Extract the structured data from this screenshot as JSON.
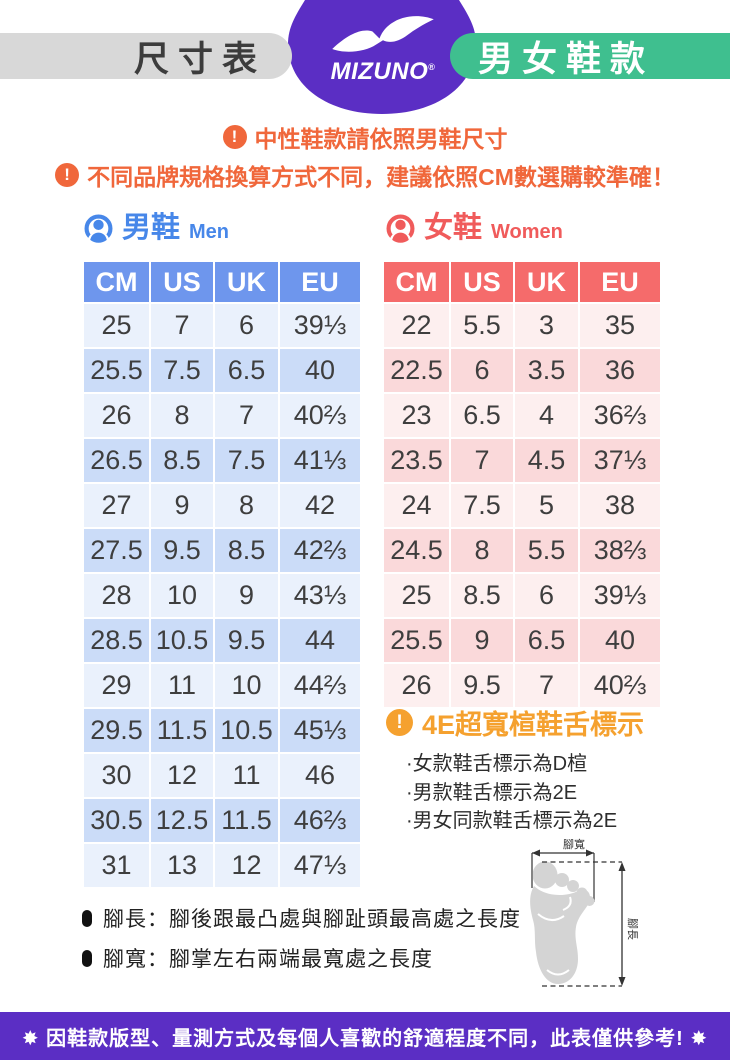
{
  "header": {
    "left_pill": "尺寸表",
    "right_pill": "男女鞋款",
    "brand_wordmark": "MIZUNO",
    "brand_reg_mark": "®"
  },
  "notices": {
    "line1": "中性鞋款請依照男鞋尺寸",
    "line2": "不同品牌規格換算方式不同，建議依照CM數選購較準確！",
    "alert_glyph": "!"
  },
  "men_section": {
    "title_zh": "男鞋",
    "title_en": "Men",
    "columns": [
      "CM",
      "US",
      "UK",
      "EU"
    ],
    "rows": [
      [
        "25",
        "7",
        "6",
        "39⅓"
      ],
      [
        "25.5",
        "7.5",
        "6.5",
        "40"
      ],
      [
        "26",
        "8",
        "7",
        "40⅔"
      ],
      [
        "26.5",
        "8.5",
        "7.5",
        "41⅓"
      ],
      [
        "27",
        "9",
        "8",
        "42"
      ],
      [
        "27.5",
        "9.5",
        "8.5",
        "42⅔"
      ],
      [
        "28",
        "10",
        "9",
        "43⅓"
      ],
      [
        "28.5",
        "10.5",
        "9.5",
        "44"
      ],
      [
        "29",
        "11",
        "10",
        "44⅔"
      ],
      [
        "29.5",
        "11.5",
        "10.5",
        "45⅓"
      ],
      [
        "30",
        "12",
        "11",
        "46"
      ],
      [
        "30.5",
        "12.5",
        "11.5",
        "46⅔"
      ],
      [
        "31",
        "13",
        "12",
        "47⅓"
      ]
    ]
  },
  "women_section": {
    "title_zh": "女鞋",
    "title_en": "Women",
    "columns": [
      "CM",
      "US",
      "UK",
      "EU"
    ],
    "rows": [
      [
        "22",
        "5.5",
        "3",
        "35"
      ],
      [
        "22.5",
        "6",
        "3.5",
        "36"
      ],
      [
        "23",
        "6.5",
        "4",
        "36⅔"
      ],
      [
        "23.5",
        "7",
        "4.5",
        "37⅓"
      ],
      [
        "24",
        "7.5",
        "5",
        "38"
      ],
      [
        "24.5",
        "8",
        "5.5",
        "38⅔"
      ],
      [
        "25",
        "8.5",
        "6",
        "39⅓"
      ],
      [
        "25.5",
        "9",
        "6.5",
        "40"
      ],
      [
        "26",
        "9.5",
        "7",
        "40⅔"
      ]
    ]
  },
  "wide_last_block": {
    "title": "4E超寬楦鞋舌標示",
    "alert_glyph": "!",
    "items": [
      "·女款鞋舌標示為D楦",
      "·男款鞋舌標示為2E",
      "·男女同款鞋舌標示為2E"
    ]
  },
  "measure_notes": {
    "line1": "腳長：腳後跟最凸處與腳趾頭最高處之長度",
    "line2": "腳寬：腳掌左右兩端最寬處之長度"
  },
  "foot_diagram": {
    "width_label": "腳寬",
    "length_label": "腳長"
  },
  "footer": {
    "text": "✸ 因鞋款版型、量測方式及每個人喜歡的舒適程度不同，此表僅供參考! ✸"
  },
  "colors": {
    "purple": "#5B2EC4",
    "green": "#3FBF8F",
    "gray_pill": "#D8D8D8",
    "warning_orange": "#F0673B",
    "wide_orange": "#F5A12F",
    "men_blue": "#4787E9",
    "men_header_bg": "#6E96ED",
    "men_row_light": "#EAF1FC",
    "men_row_dark": "#CBDCF8",
    "women_red": "#F05B5B",
    "women_header_bg": "#F56B6B",
    "women_row_light": "#FDEFEF",
    "women_row_dark": "#FAD9DA"
  }
}
